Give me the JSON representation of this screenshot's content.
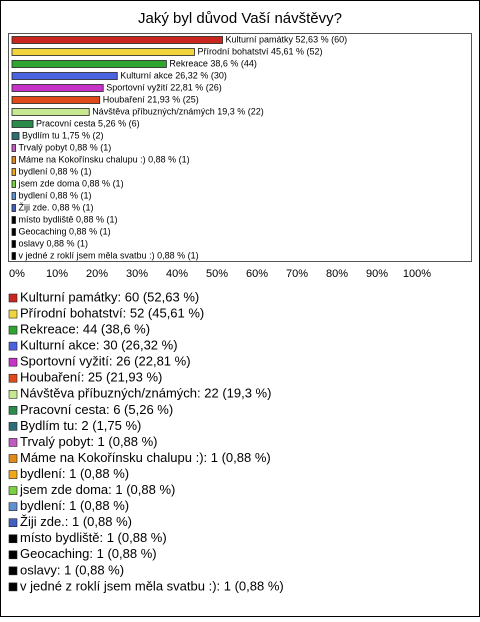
{
  "chart_data": {
    "type": "bar",
    "orientation": "horizontal",
    "title": "Jaký byl důvod Vaší návštěvy?",
    "values": [
      52.63,
      45.61,
      38.6,
      26.32,
      22.81,
      21.93,
      19.3,
      5.26,
      1.75,
      0.88,
      0.88,
      0.88,
      0.88,
      0.88,
      0.88,
      0.88,
      0.88,
      0.88,
      0.88
    ],
    "value_labels": [
      "Kulturní památky 52,63 % (60)",
      "Přírodní bohatství 45,61 % (52)",
      "Rekreace 38,6 % (44)",
      "Kulturní akce 26,32 % (30)",
      "Sportovní vyžití 22,81 % (26)",
      "Houbaření 21,93 % (25)",
      "Návštěva příbuzných/známých 19,3 % (22)",
      "Pracovní cesta 5,26 % (6)",
      "Bydlím tu 1,75 % (2)",
      "Trvalý pobyt 0,88 % (1)",
      "Máme na Kokořínsku chalupu :) 0,88 % (1)",
      "bydlení 0,88 % (1)",
      "jsem zde doma 0,88 % (1)",
      "bydlení 0,88 % (1)",
      "Žiji zde. 0,88 % (1)",
      "místo bydliště 0,88 % (1)",
      "Geocaching 0,88 % (1)",
      "oslavy 0,88 % (1)",
      "v jedné z roklí jsem měla svatbu :) 0,88 % (1)"
    ],
    "legend_labels": [
      "Kulturní památky: 60 (52,63 %)",
      "Přírodní bohatství: 52 (45,61 %)",
      "Rekreace: 44 (38,6 %)",
      "Kulturní akce: 30 (26,32 %)",
      "Sportovní vyžití: 26 (22,81 %)",
      "Houbaření: 25 (21,93 %)",
      "Návštěva příbuzných/známých: 22 (19,3 %)",
      "Pracovní cesta: 6 (5,26 %)",
      "Bydlím tu: 2 (1,75 %)",
      "Trvalý pobyt: 1 (0,88 %)",
      "Máme na Kokořínsku chalupu :): 1 (0,88 %)",
      "bydlení: 1 (0,88 %)",
      "jsem zde doma: 1 (0,88 %)",
      "bydlení: 1 (0,88 %)",
      "Žiji zde.: 1 (0,88 %)",
      "místo bydliště: 1 (0,88 %)",
      "Geocaching: 1 (0,88 %)",
      "oslavy: 1 (0,88 %)",
      "v jedné z roklí jsem měla svatbu :): 1 (0,88 %)"
    ],
    "colors": [
      "#c8261e",
      "#f2d53c",
      "#2fa52f",
      "#4a63e0",
      "#c633c6",
      "#e04a1a",
      "#c8e890",
      "#2a8a4a",
      "#2d6d7a",
      "#c05ac0",
      "#e08a1a",
      "#f0a818",
      "#7ad040",
      "#6090d0",
      "#4060c0",
      "#000000",
      "#000000",
      "#000000",
      "#000000"
    ],
    "xlim": [
      0,
      100
    ],
    "xticks": [
      {
        "value": 0,
        "label": "0%"
      },
      {
        "value": 10,
        "label": "10%"
      },
      {
        "value": 20,
        "label": "20%"
      },
      {
        "value": 30,
        "label": "30%"
      },
      {
        "value": 40,
        "label": "40%"
      },
      {
        "value": 50,
        "label": "50%"
      },
      {
        "value": 60,
        "label": "60%"
      },
      {
        "value": 70,
        "label": "70%"
      },
      {
        "value": 80,
        "label": "80%"
      },
      {
        "value": 90,
        "label": "90%"
      },
      {
        "value": 100,
        "label": "100%"
      }
    ],
    "grid": false
  }
}
